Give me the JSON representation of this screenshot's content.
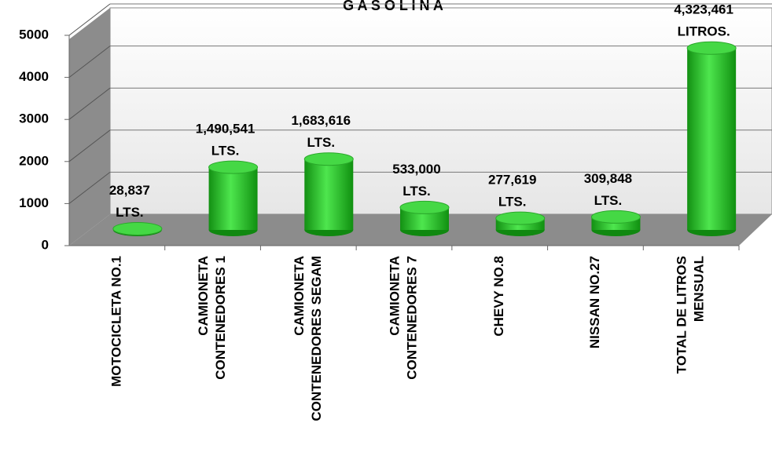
{
  "chart_data": {
    "type": "bar3d",
    "title": "G A S O L I N A",
    "categories": [
      [
        "MOTOCICLETA NO.1"
      ],
      [
        "CAMIONETA",
        "CONTENEDORES 1"
      ],
      [
        "CAMIONETA",
        "CONTENEDORES SEGAM"
      ],
      [
        "CAMIONETA",
        "CONTENEDORES 7"
      ],
      [
        "CHEVY NO.8"
      ],
      [
        "NISSAN NO.27"
      ],
      [
        "TOTAL DE LITROS",
        "MENSUAL"
      ]
    ],
    "values": [
      28.837,
      1490.541,
      1683.616,
      533.0,
      277.619,
      309.848,
      4323.461
    ],
    "value_labels": [
      [
        "28,837",
        "LTS."
      ],
      [
        "1,490,541",
        "LTS."
      ],
      [
        "1,683,616",
        "LTS."
      ],
      [
        "533,000",
        "LTS."
      ],
      [
        "277,619",
        "LTS."
      ],
      [
        "309,848",
        "LTS."
      ],
      [
        "4,323,461",
        "LITROS."
      ]
    ],
    "color": "#2fc42f",
    "ylim": [
      0,
      5000
    ],
    "yticks": [
      0,
      1000,
      2000,
      3000,
      4000,
      5000
    ],
    "grid": true
  }
}
